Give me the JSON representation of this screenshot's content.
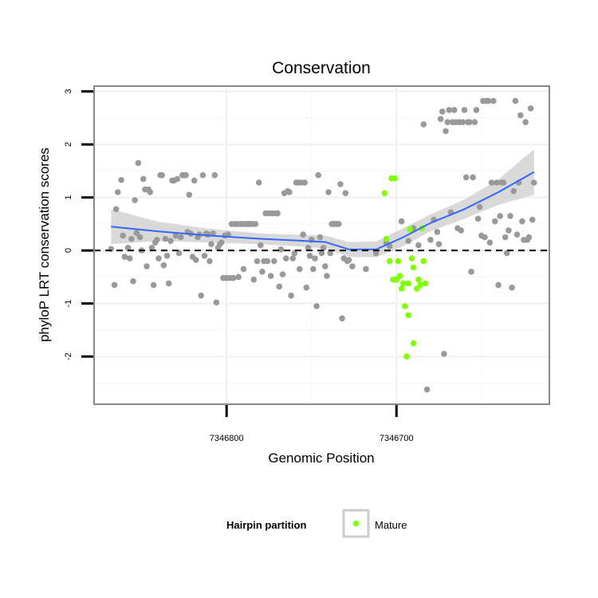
{
  "chart_data": {
    "type": "scatter",
    "title": "Conservation",
    "xlabel": "Genomic Position",
    "ylabel": "phyloP LRT conservation scores",
    "x_reversed": true,
    "xlim": [
      7346878,
      7346610
    ],
    "ylim": [
      -2.9,
      3.1
    ],
    "x_ticks": [
      7346800,
      7346700
    ],
    "x_tick_labels": [
      "7346800",
      "7346700"
    ],
    "y_ticks": [
      3,
      2,
      1,
      0,
      -1,
      -2
    ],
    "y_tick_labels": [
      "3",
      "2",
      "1",
      "0",
      "-1",
      "-2"
    ],
    "grid": true,
    "reference_line": {
      "y": 0,
      "style": "dashed",
      "color": "#000000"
    },
    "colors": {
      "background_points": "#999999",
      "mature_points": "#7fff00",
      "smooth": "#3366ff",
      "ribbon": "#cccccc",
      "panel_border": "#888888"
    },
    "legend": {
      "title": "Hairpin partition",
      "placement": "bottom",
      "entries": [
        "Mature"
      ]
    },
    "series": [
      {
        "name": "",
        "color": "#999999",
        "points": [
          [
            7346868,
            0.03
          ],
          [
            7346866,
            -0.65
          ],
          [
            7346865,
            0.78
          ],
          [
            7346864,
            1.1
          ],
          [
            7346862,
            1.33
          ],
          [
            7346861,
            0.28
          ],
          [
            7346860,
            -0.12
          ],
          [
            7346858,
            0.05
          ],
          [
            7346857,
            -0.15
          ],
          [
            7346856,
            0.22
          ],
          [
            7346855,
            -0.58
          ],
          [
            7346854,
            0.95
          ],
          [
            7346853,
            0.33
          ],
          [
            7346852,
            1.65
          ],
          [
            7346851,
            0.25
          ],
          [
            7346850,
            0.0
          ],
          [
            7346849,
            1.35
          ],
          [
            7346848,
            1.15
          ],
          [
            7346847,
            -0.3
          ],
          [
            7346846,
            1.15
          ],
          [
            7346845,
            1.1
          ],
          [
            7346844,
            0.05
          ],
          [
            7346843,
            -0.65
          ],
          [
            7346842,
            0.15
          ],
          [
            7346841,
            0.2
          ],
          [
            7346840,
            -0.15
          ],
          [
            7346839,
            1.42
          ],
          [
            7346838,
            1.42
          ],
          [
            7346837,
            -0.28
          ],
          [
            7346836,
            0.22
          ],
          [
            7346835,
            -0.1
          ],
          [
            7346834,
            -0.62
          ],
          [
            7346833,
            0.18
          ],
          [
            7346832,
            1.32
          ],
          [
            7346831,
            1.32
          ],
          [
            7346830,
            0.28
          ],
          [
            7346829,
            1.35
          ],
          [
            7346828,
            -0.05
          ],
          [
            7346827,
            0.25
          ],
          [
            7346826,
            1.42
          ],
          [
            7346825,
            1.42
          ],
          [
            7346824,
            1.42
          ],
          [
            7346823,
            0.35
          ],
          [
            7346822,
            1.05
          ],
          [
            7346821,
            0.32
          ],
          [
            7346820,
            -0.12
          ],
          [
            7346819,
            1.32
          ],
          [
            7346818,
            -0.18
          ],
          [
            7346817,
            0.25
          ],
          [
            7346816,
            0.3
          ],
          [
            7346815,
            -0.85
          ],
          [
            7346814,
            1.42
          ],
          [
            7346813,
            -0.1
          ],
          [
            7346812,
            0.32
          ],
          [
            7346811,
            0.3
          ],
          [
            7346810,
            -0.2
          ],
          [
            7346809,
            0.12
          ],
          [
            7346808,
            0.32
          ],
          [
            7346807,
            1.42
          ],
          [
            7346806,
            -0.98
          ],
          [
            7346805,
            0.05
          ],
          [
            7346804,
            0.12
          ],
          [
            7346803,
            0.15
          ],
          [
            7346802,
            -0.52
          ],
          [
            7346801,
            0.28
          ],
          [
            7346800,
            -0.52
          ],
          [
            7346799,
            0.3
          ],
          [
            7346798,
            -0.52
          ],
          [
            7346797,
            0.5
          ],
          [
            7346796,
            -0.52
          ],
          [
            7346795,
            0.5
          ],
          [
            7346794,
            0.5
          ],
          [
            7346793,
            -0.5
          ],
          [
            7346792,
            0.5
          ],
          [
            7346791,
            0.5
          ],
          [
            7346790,
            -0.35
          ],
          [
            7346789,
            0.5
          ],
          [
            7346788,
            0.5
          ],
          [
            7346787,
            0.5
          ],
          [
            7346786,
            0.5
          ],
          [
            7346785,
            0.5
          ],
          [
            7346784,
            -0.55
          ],
          [
            7346783,
            0.5
          ],
          [
            7346782,
            -0.2
          ],
          [
            7346781,
            1.28
          ],
          [
            7346780,
            0.1
          ],
          [
            7346779,
            -0.4
          ],
          [
            7346778,
            -0.2
          ],
          [
            7346777,
            0.7
          ],
          [
            7346776,
            -0.2
          ],
          [
            7346775,
            0.7
          ],
          [
            7346774,
            -0.48
          ],
          [
            7346773,
            0.7
          ],
          [
            7346772,
            -0.2
          ],
          [
            7346771,
            0.7
          ],
          [
            7346770,
            0.7
          ],
          [
            7346769,
            -0.68
          ],
          [
            7346768,
            0.02
          ],
          [
            7346767,
            -0.45
          ],
          [
            7346766,
            1.08
          ],
          [
            7346765,
            -0.15
          ],
          [
            7346764,
            1.12
          ],
          [
            7346763,
            1.1
          ],
          [
            7346762,
            -0.85
          ],
          [
            7346761,
            -0.15
          ],
          [
            7346760,
            -0.05
          ],
          [
            7346759,
            1.28
          ],
          [
            7346758,
            1.28
          ],
          [
            7346757,
            -0.35
          ],
          [
            7346756,
            1.28
          ],
          [
            7346755,
            0.3
          ],
          [
            7346754,
            1.28
          ],
          [
            7346753,
            -0.7
          ],
          [
            7346752,
            0.05
          ],
          [
            7346751,
            -0.1
          ],
          [
            7346750,
            0.2
          ],
          [
            7346749,
            -0.35
          ],
          [
            7346748,
            -0.15
          ],
          [
            7346747,
            -1.05
          ],
          [
            7346746,
            1.42
          ],
          [
            7346745,
            0.25
          ],
          [
            7346744,
            -0.05
          ],
          [
            7346743,
            0.05
          ],
          [
            7346742,
            -0.3
          ],
          [
            7346741,
            -0.48
          ],
          [
            7346740,
            1.1
          ],
          [
            7346739,
            -0.05
          ],
          [
            7346738,
            0.5
          ],
          [
            7346737,
            0.5
          ],
          [
            7346736,
            0.5
          ],
          [
            7346735,
            0.5
          ],
          [
            7346734,
            0.5
          ],
          [
            7346733,
            1.25
          ],
          [
            7346732,
            -1.28
          ],
          [
            7346731,
            -0.15
          ],
          [
            7346730,
            1.08
          ],
          [
            7346729,
            -0.2
          ],
          [
            7346728,
            -0.18
          ],
          [
            7346726,
            -0.3
          ],
          [
            7346718,
            -0.35
          ],
          [
            7346712,
            -0.05
          ],
          [
            7346706,
            0.15
          ],
          [
            7346704,
            0.08
          ],
          [
            7346697,
            0.55
          ],
          [
            7346693,
            0.18
          ],
          [
            7346690,
            0.42
          ],
          [
            7346687,
            0.1
          ],
          [
            7346684,
            2.38
          ],
          [
            7346682,
            -2.62
          ],
          [
            7346680,
            0.2
          ],
          [
            7346678,
            0.58
          ],
          [
            7346676,
            0.35
          ],
          [
            7346675,
            0.12
          ],
          [
            7346674,
            2.48
          ],
          [
            7346673,
            2.62
          ],
          [
            7346672,
            -1.95
          ],
          [
            7346671,
            2.25
          ],
          [
            7346670,
            2.42
          ],
          [
            7346669,
            2.65
          ],
          [
            7346668,
            0.72
          ],
          [
            7346667,
            2.42
          ],
          [
            7346666,
            2.65
          ],
          [
            7346665,
            2.42
          ],
          [
            7346664,
            0.42
          ],
          [
            7346663,
            2.42
          ],
          [
            7346662,
            0.38
          ],
          [
            7346661,
            2.42
          ],
          [
            7346660,
            2.65
          ],
          [
            7346659,
            1.38
          ],
          [
            7346658,
            2.42
          ],
          [
            7346657,
            2.42
          ],
          [
            7346656,
            -0.4
          ],
          [
            7346655,
            1.38
          ],
          [
            7346654,
            2.42
          ],
          [
            7346653,
            2.65
          ],
          [
            7346652,
            0.6
          ],
          [
            7346651,
            0.82
          ],
          [
            7346650,
            0.28
          ],
          [
            7346649,
            2.82
          ],
          [
            7346648,
            0.25
          ],
          [
            7346647,
            2.82
          ],
          [
            7346646,
            2.82
          ],
          [
            7346645,
            0.15
          ],
          [
            7346644,
            1.28
          ],
          [
            7346643,
            2.82
          ],
          [
            7346642,
            0.55
          ],
          [
            7346641,
            1.28
          ],
          [
            7346640,
            -0.65
          ],
          [
            7346639,
            0.65
          ],
          [
            7346638,
            1.28
          ],
          [
            7346637,
            1.28
          ],
          [
            7346636,
            0.25
          ],
          [
            7346635,
            -0.05
          ],
          [
            7346634,
            0.38
          ],
          [
            7346633,
            0.65
          ],
          [
            7346632,
            -0.7
          ],
          [
            7346631,
            1.12
          ],
          [
            7346630,
            2.82
          ],
          [
            7346629,
            0.3
          ],
          [
            7346628,
            1.28
          ],
          [
            7346627,
            2.55
          ],
          [
            7346626,
            0.55
          ],
          [
            7346625,
            0.2
          ],
          [
            7346624,
            2.42
          ],
          [
            7346623,
            0.2
          ],
          [
            7346622,
            0.25
          ],
          [
            7346621,
            2.68
          ],
          [
            7346620,
            0.58
          ],
          [
            7346619,
            1.28
          ]
        ]
      },
      {
        "name": "Mature",
        "color": "#7fff00",
        "points": [
          [
            7346707,
            1.08
          ],
          [
            7346706,
            0.22
          ],
          [
            7346704,
            -0.2
          ],
          [
            7346703,
            1.36
          ],
          [
            7346702,
            -0.55
          ],
          [
            7346701,
            1.36
          ],
          [
            7346700,
            -0.55
          ],
          [
            7346699,
            -0.2
          ],
          [
            7346698,
            -0.48
          ],
          [
            7346697,
            -0.72
          ],
          [
            7346696,
            -0.62
          ],
          [
            7346695,
            -1.05
          ],
          [
            7346694,
            -2.0
          ],
          [
            7346693,
            -0.62
          ],
          [
            7346693,
            -1.22
          ],
          [
            7346692,
            0.4
          ],
          [
            7346691,
            -0.15
          ],
          [
            7346690,
            -0.32
          ],
          [
            7346690,
            -1.75
          ],
          [
            7346688,
            -0.72
          ],
          [
            7346687,
            -0.55
          ],
          [
            7346686,
            -0.65
          ],
          [
            7346685,
            0.42
          ],
          [
            7346684,
            -0.2
          ],
          [
            7346683,
            -0.62
          ]
        ]
      }
    ],
    "smooth": {
      "x": [
        7346868,
        7346840,
        7346810,
        7346780,
        7346760,
        7346742,
        7346728,
        7346712,
        7346696,
        7346680,
        7346660,
        7346640,
        7346619
      ],
      "y": [
        0.45,
        0.36,
        0.28,
        0.22,
        0.19,
        0.16,
        0.02,
        0.02,
        0.25,
        0.52,
        0.78,
        1.1,
        1.48
      ],
      "lower": [
        0.12,
        0.18,
        0.15,
        0.12,
        0.08,
        0.04,
        -0.12,
        -0.13,
        0.08,
        0.36,
        0.6,
        0.86,
        1.05
      ],
      "upper": [
        0.78,
        0.54,
        0.41,
        0.32,
        0.3,
        0.28,
        0.16,
        0.17,
        0.42,
        0.68,
        0.96,
        1.34,
        1.91
      ]
    }
  }
}
